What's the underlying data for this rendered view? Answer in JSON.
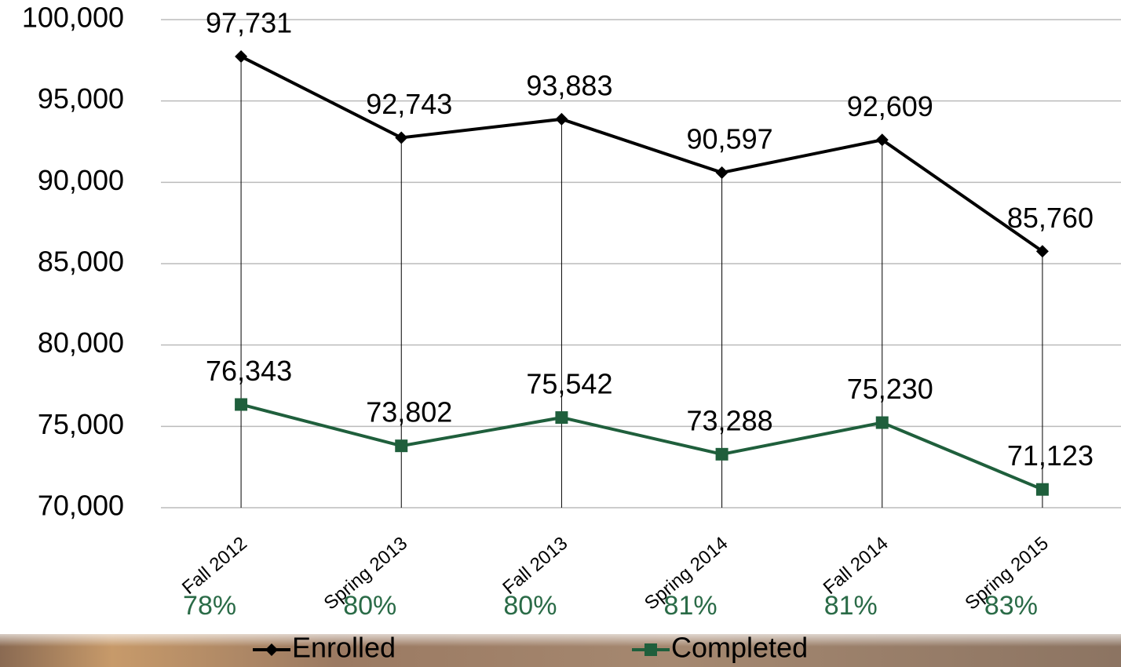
{
  "chart_data": {
    "type": "line",
    "categories": [
      "Fall 2012",
      "Spring 2013",
      "Fall 2013",
      "Spring 2014",
      "Fall 2014",
      "Spring 2015"
    ],
    "series": [
      {
        "name": "Enrolled",
        "color": "#000000",
        "marker": "diamond",
        "values": [
          97731,
          92743,
          93883,
          90597,
          92609,
          85760
        ],
        "value_labels": [
          "97,731",
          "92,743",
          "93,883",
          "90,597",
          "92,609",
          "85,760"
        ]
      },
      {
        "name": "Completed",
        "color": "#1f5f3c",
        "marker": "square",
        "values": [
          76343,
          73802,
          75542,
          73288,
          75230,
          71123
        ],
        "value_labels": [
          "76,343",
          "73,802",
          "75,542",
          "73,288",
          "75,230",
          "71,123"
        ]
      }
    ],
    "completion_rate": {
      "values": [
        78,
        80,
        80,
        81,
        81,
        83
      ],
      "value_labels": [
        "78%",
        "80%",
        "80%",
        "81%",
        "81%",
        "83%"
      ]
    },
    "ylim": [
      70000,
      100000
    ],
    "yticks": [
      {
        "value": 70000,
        "label": "70,000"
      },
      {
        "value": 75000,
        "label": "75,000"
      },
      {
        "value": 80000,
        "label": "80,000"
      },
      {
        "value": 85000,
        "label": "85,000"
      },
      {
        "value": 90000,
        "label": "90,000"
      },
      {
        "value": 95000,
        "label": "95,000"
      },
      {
        "value": 100000,
        "label": "100,000"
      }
    ],
    "grid": true,
    "legend": "bottom"
  }
}
